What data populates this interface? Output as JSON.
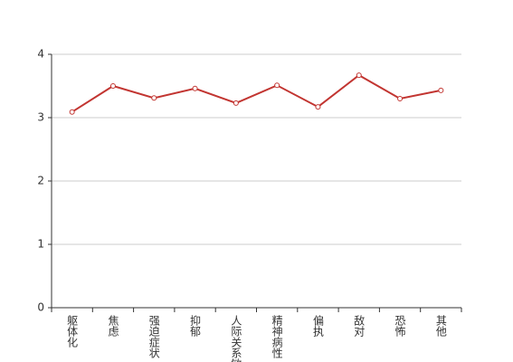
{
  "chart_data": {
    "type": "line",
    "categories": [
      "躯体化",
      "焦虑",
      "强迫症状",
      "抑郁",
      "人际关系敏感",
      "精神病性",
      "偏执",
      "敌对",
      "恐怖",
      "其他"
    ],
    "series": [
      {
        "color": "#c23531",
        "values": [
          3.09,
          3.5,
          3.31,
          3.46,
          3.23,
          3.51,
          3.17,
          3.67,
          3.3,
          3.43
        ]
      }
    ],
    "ylim": [
      0,
      4
    ],
    "yticks": [
      0,
      1,
      2,
      3,
      4
    ],
    "grid": true
  }
}
